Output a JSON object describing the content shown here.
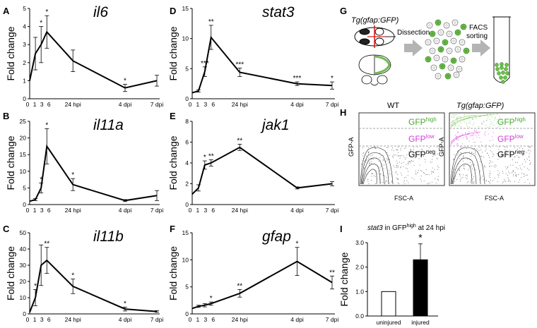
{
  "panel_labels": [
    "A",
    "B",
    "C",
    "D",
    "E",
    "F",
    "G",
    "H",
    "I"
  ],
  "line_x_ticks": [
    "0",
    "1",
    "3",
    "6",
    "24 hpi",
    "4 dpi",
    "7 dpi"
  ],
  "line_ylabel": "Fold change",
  "colors": {
    "line": "#000000",
    "gfp_high": "#4aa832",
    "gfp_low": "#d63bd6",
    "cells": "#6cbf4a",
    "arrow": "#b4b4b4"
  },
  "chart_data": [
    {
      "id": "A",
      "type": "line",
      "title": "il6",
      "ylabel": "Fold change",
      "x": [
        "0",
        "1",
        "3",
        "6",
        "24 hpi",
        "4 dpi",
        "7 dpi"
      ],
      "values": [
        1.0,
        2.5,
        3.0,
        3.7,
        2.1,
        0.6,
        1.0
      ],
      "errors": [
        0.0,
        0.9,
        1.0,
        0.9,
        0.6,
        0.2,
        0.3
      ],
      "stars": [
        "",
        "",
        "*",
        "*",
        "",
        "*",
        ""
      ],
      "ylim": [
        0,
        5
      ],
      "yticks": [
        0,
        1,
        2,
        3,
        4,
        5
      ],
      "ytick_labels": [
        "0",
        "1",
        "2",
        "3",
        "4",
        "5"
      ]
    },
    {
      "id": "B",
      "type": "line",
      "title": "il11a",
      "ylabel": "Fold change",
      "x": [
        "0",
        "1",
        "3",
        "6",
        "24 hpi",
        "4 dpi",
        "7 dpi"
      ],
      "values": [
        1.0,
        1.5,
        5.0,
        17.5,
        6.0,
        1.2,
        2.7
      ],
      "errors": [
        0.0,
        0.3,
        1.5,
        5.3,
        1.8,
        0.3,
        1.5
      ],
      "stars": [
        "",
        "",
        "*",
        "*",
        "*",
        "",
        ""
      ],
      "ylim": [
        0,
        25
      ],
      "yticks": [
        0,
        5,
        10,
        15,
        20,
        25
      ],
      "ytick_labels": [
        "0",
        "5",
        "10",
        "15",
        "20",
        "25"
      ]
    },
    {
      "id": "C",
      "type": "line",
      "title": "il11b",
      "ylabel": "Fold change",
      "x": [
        "0",
        "1",
        "3",
        "6",
        "24 hpi",
        "4 dpi",
        "7 dpi"
      ],
      "values": [
        1.0,
        10.0,
        30.0,
        33.0,
        17.0,
        3.0,
        1.5
      ],
      "errors": [
        0.0,
        5.0,
        12.5,
        8.0,
        4.5,
        1.2,
        0.5
      ],
      "stars": [
        "",
        "*",
        "",
        "**",
        "*",
        "*",
        ""
      ],
      "ylim": [
        0,
        50
      ],
      "yticks": [
        0,
        10,
        20,
        30,
        40,
        50
      ],
      "ytick_labels": [
        "0",
        "10",
        "20",
        "30",
        "40",
        "50"
      ]
    },
    {
      "id": "D",
      "type": "line",
      "title": "stat3",
      "ylabel": "Fold change",
      "x": [
        "0",
        "1",
        "3",
        "6",
        "24 hpi",
        "4 dpi",
        "7 dpi"
      ],
      "values": [
        1.0,
        1.3,
        4.5,
        10.2,
        4.4,
        2.5,
        2.2
      ],
      "errors": [
        0.0,
        0.2,
        0.8,
        2.0,
        0.7,
        0.3,
        0.6
      ],
      "stars": [
        "",
        "",
        "***",
        "**",
        "***",
        "***",
        "*"
      ],
      "ylim": [
        0,
        15
      ],
      "yticks": [
        0,
        5,
        10,
        15
      ],
      "ytick_labels": [
        "0",
        "5",
        "10",
        "15"
      ]
    },
    {
      "id": "E",
      "type": "line",
      "title": "jak1",
      "ylabel": "Fold change",
      "x": [
        "0",
        "1",
        "3",
        "6",
        "24 hpi",
        "4 dpi",
        "7 dpi"
      ],
      "values": [
        1.0,
        1.6,
        3.8,
        4.0,
        5.5,
        1.6,
        2.0
      ],
      "errors": [
        0.0,
        0.3,
        0.4,
        0.3,
        0.3,
        0.1,
        0.2
      ],
      "stars": [
        "",
        "",
        "*",
        "**",
        "**",
        "",
        ""
      ],
      "ylim": [
        0,
        8
      ],
      "yticks": [
        0,
        2,
        4,
        6,
        8
      ],
      "ytick_labels": [
        "0",
        "2",
        "4",
        "6",
        "8"
      ]
    },
    {
      "id": "F",
      "type": "line",
      "title": "gfap",
      "ylabel": "Fold change",
      "x": [
        "0",
        "1",
        "3",
        "6",
        "24 hpi",
        "4 dpi",
        "7 dpi"
      ],
      "values": [
        1.0,
        1.4,
        1.6,
        1.9,
        3.8,
        9.7,
        5.8
      ],
      "errors": [
        0.0,
        0.2,
        0.3,
        0.3,
        0.7,
        2.6,
        1.2
      ],
      "stars": [
        "",
        "",
        "",
        "*",
        "**",
        "*",
        "**"
      ],
      "ylim": [
        0,
        15
      ],
      "yticks": [
        0,
        5,
        10,
        15
      ],
      "ytick_labels": [
        "0",
        "5",
        "10",
        "15"
      ]
    },
    {
      "id": "I",
      "type": "bar",
      "title": "stat3 in GFPhigh at 24 hpi",
      "ylabel": "Fold change",
      "categories": [
        "uninjured",
        "injured"
      ],
      "values": [
        1.0,
        2.3
      ],
      "errors": [
        0.0,
        0.65
      ],
      "stars": [
        "",
        "*"
      ],
      "bar_colors": [
        "#ffffff",
        "#000000"
      ],
      "ylim": [
        0,
        3
      ],
      "yticks": [
        0,
        1,
        2,
        3
      ],
      "ytick_labels": [
        "0.0",
        "1.0",
        "2.0",
        "3.0"
      ]
    }
  ],
  "panel_g": {
    "transgenic_label": "Tg(gfap:GFP)",
    "step1": "Dissection",
    "step2": "FACS sorting"
  },
  "panel_h": {
    "wt_title": "WT",
    "tg_title": "Tg(gfap:GFP)",
    "xaxis": "FSC-A",
    "yaxis": "GFP-A",
    "gate_high": "GFP",
    "gate_high_sup": "high",
    "gate_low": "GFP",
    "gate_low_sup": "low",
    "gate_neg": "GFP",
    "gate_neg_sup": "neg"
  },
  "panel_i": {
    "title_gene": "stat3",
    "title_mid": " in GFP",
    "title_sup": "high",
    "title_tail": " at 24 hpi"
  }
}
